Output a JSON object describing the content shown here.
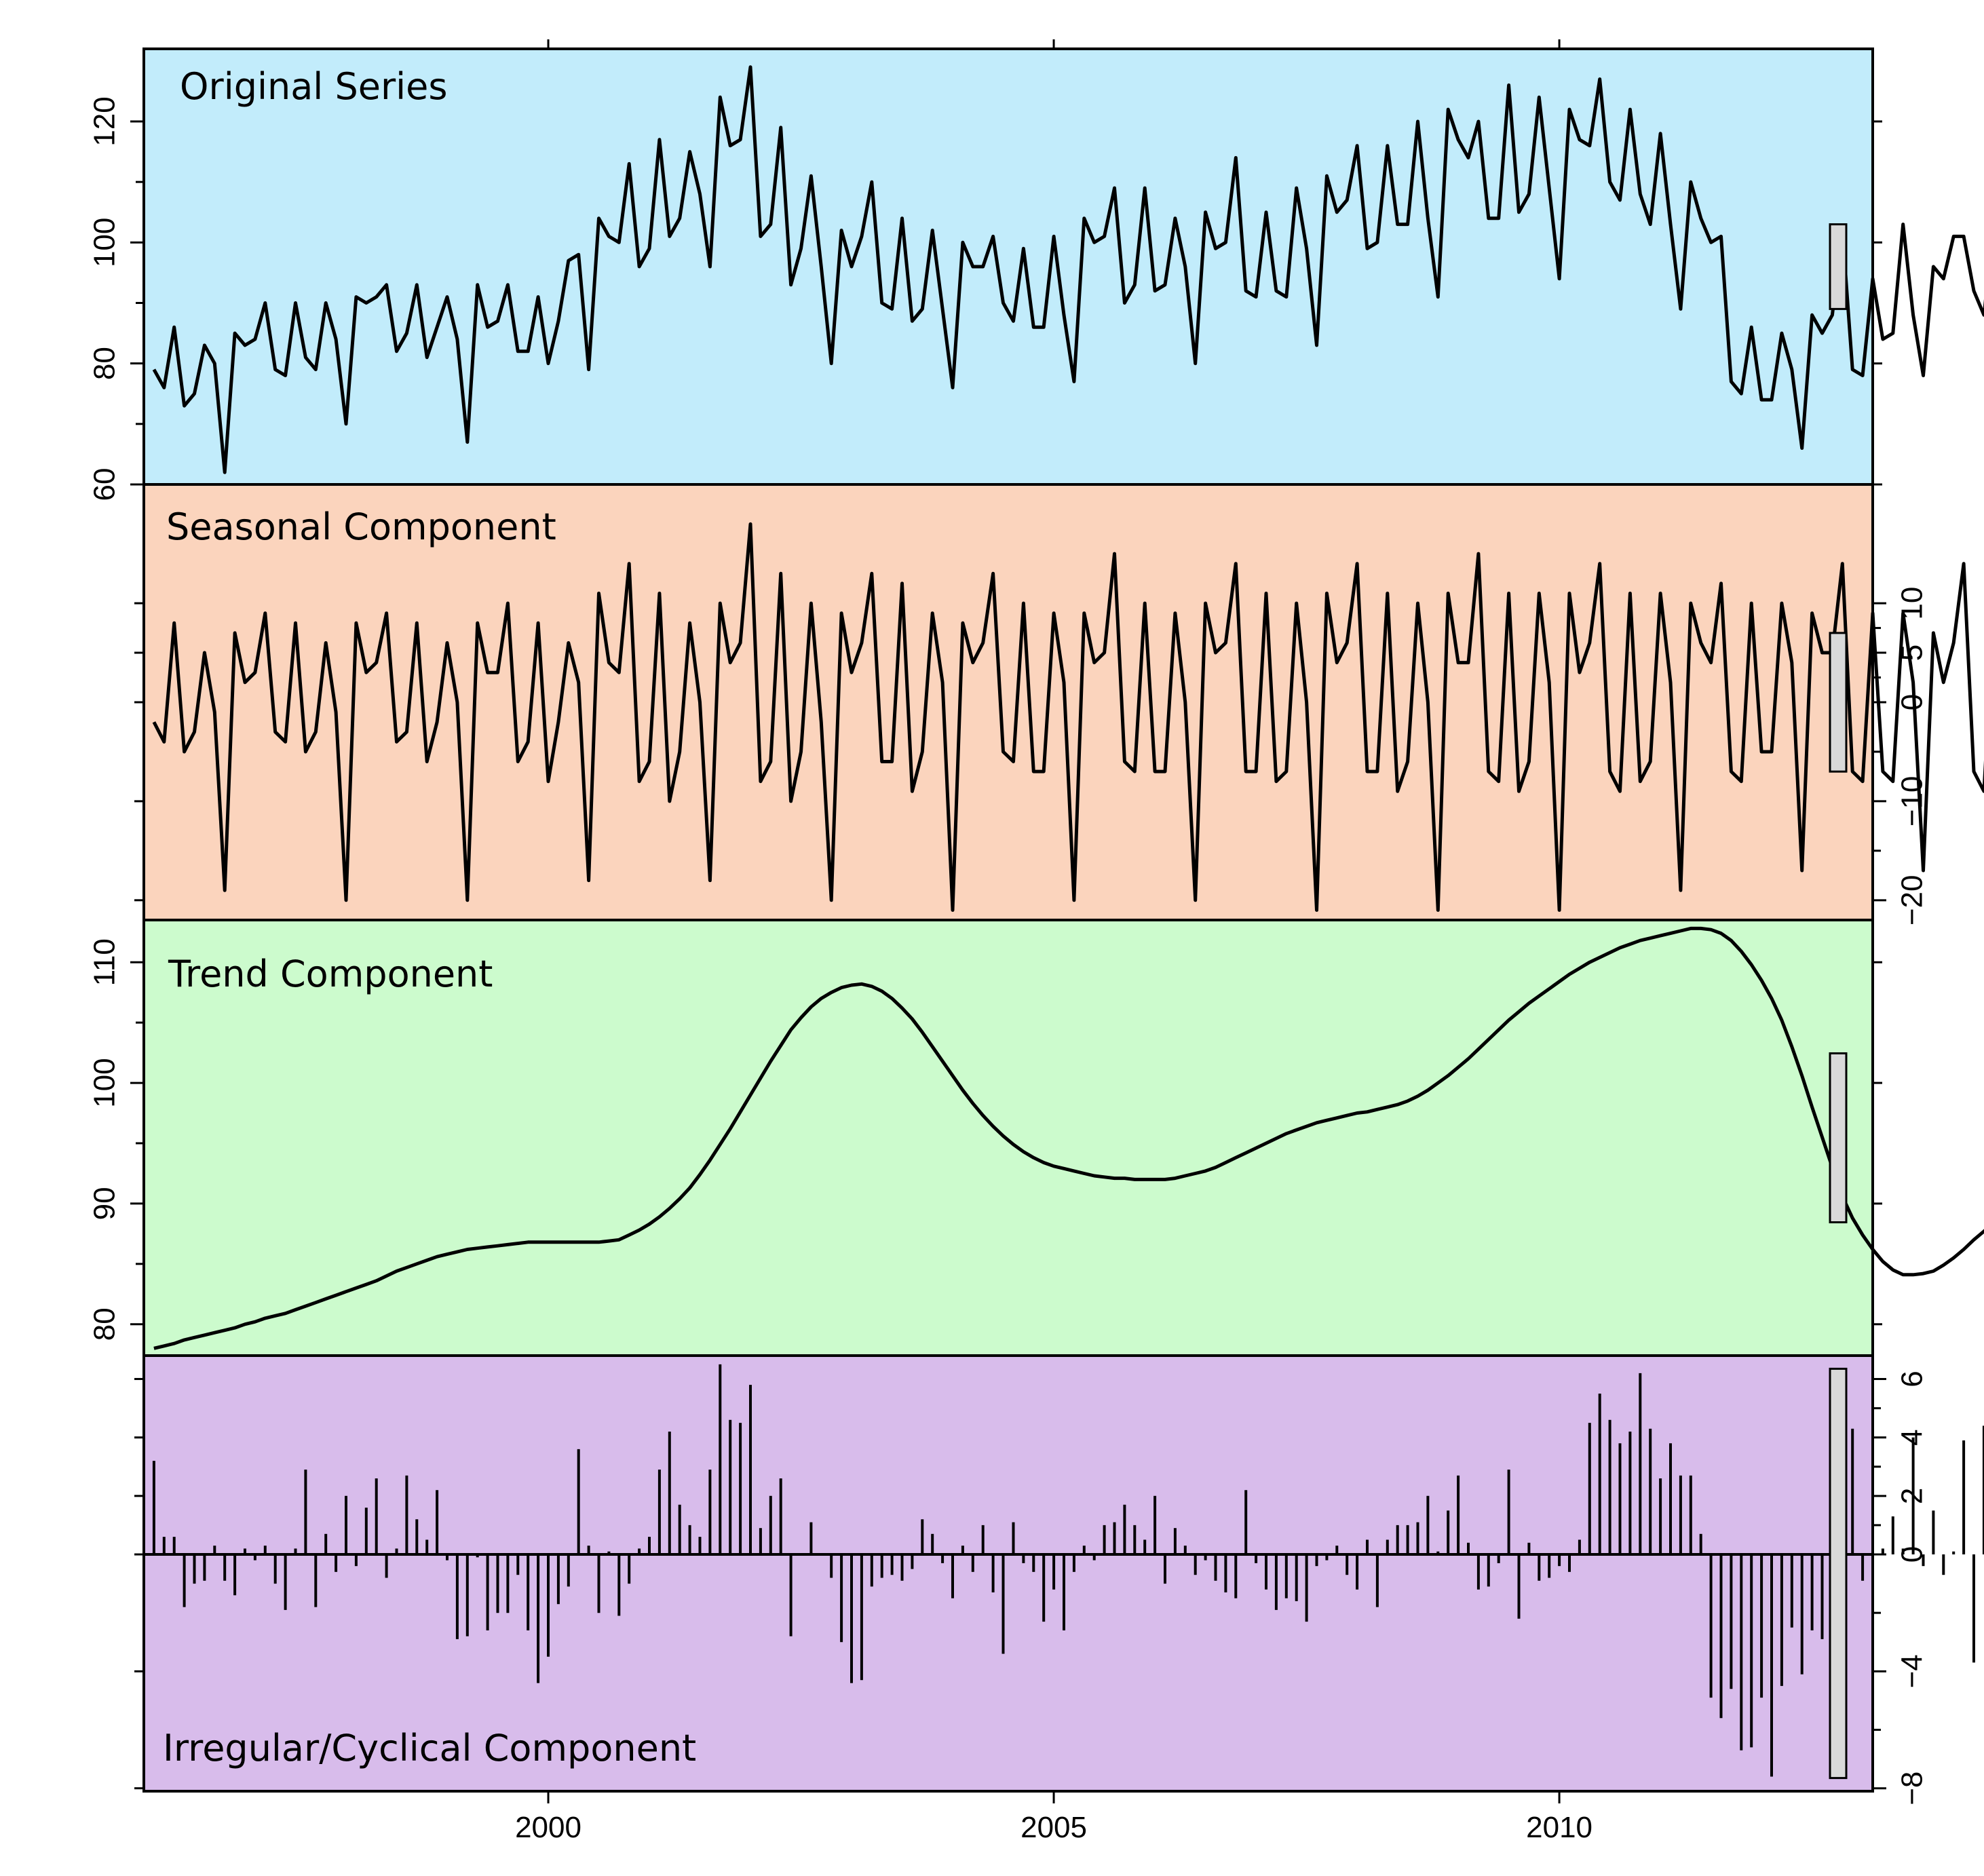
{
  "colors": {
    "original_bg": "#c2ecfb",
    "seasonal_bg": "#fbd4bd",
    "trend_bg": "#ccfbcd",
    "irregular_bg": "#d8bceb",
    "line": "#000000",
    "scale_bar": "#d9d9d9"
  },
  "chart_data": [
    {
      "type": "line",
      "title": "Original Series",
      "axis_side": "left",
      "ylim": [
        60,
        132
      ],
      "yticks": [
        60,
        80,
        100,
        120
      ],
      "x_range": [
        1996.0,
        2013.1
      ],
      "x_start": 1996.1,
      "x_step": 0.1,
      "grid": false,
      "values": [
        79,
        76,
        86,
        73,
        75,
        83,
        80,
        62,
        85,
        83,
        84,
        90,
        79,
        78,
        90,
        81,
        79,
        90,
        84,
        70,
        91,
        90,
        91,
        93,
        82,
        85,
        93,
        81,
        86,
        91,
        84,
        67,
        93,
        86,
        87,
        93,
        82,
        82,
        91,
        80,
        87,
        97,
        98,
        79,
        104,
        101,
        100,
        113,
        96,
        99,
        117,
        101,
        104,
        115,
        108,
        96,
        124,
        116,
        117,
        129,
        101,
        103,
        119,
        93,
        99,
        111,
        96,
        80,
        102,
        96,
        101,
        110,
        90,
        89,
        104,
        87,
        89,
        102,
        89,
        76,
        100,
        96,
        96,
        101,
        90,
        87,
        99,
        86,
        86,
        101,
        88,
        77,
        104,
        100,
        101,
        109,
        90,
        93,
        109,
        92,
        93,
        104,
        96,
        80,
        105,
        99,
        100,
        114,
        92,
        91,
        105,
        92,
        91,
        109,
        99,
        83,
        111,
        105,
        107,
        116,
        99,
        100,
        116,
        103,
        103,
        120,
        104,
        91,
        122,
        117,
        114,
        120,
        104,
        104,
        126,
        105,
        108,
        124,
        109,
        94,
        122,
        117,
        116,
        127,
        110,
        107,
        122,
        108,
        103,
        118,
        103,
        89,
        110,
        104,
        100,
        101,
        77,
        75,
        86,
        74,
        74,
        85,
        79,
        66,
        88,
        85,
        88,
        102,
        79,
        78,
        94,
        84,
        85,
        103,
        88,
        78,
        96,
        94,
        101,
        101,
        92,
        88,
        103,
        89,
        92,
        102,
        93,
        76,
        94,
        92,
        92
      ]
    },
    {
      "type": "line",
      "title": "Seasonal Component",
      "axis_side": "right",
      "ylim": [
        -22,
        22
      ],
      "yticks": [
        -20,
        -10,
        0,
        5,
        10
      ],
      "x_range": [
        1996.0,
        2013.1
      ],
      "x_start": 1996.1,
      "x_step": 0.1,
      "grid": false,
      "values": [
        -2,
        -4,
        8,
        -5,
        -3,
        5,
        -1,
        -19,
        7,
        2,
        3,
        9,
        -3,
        -4,
        8,
        -5,
        -3,
        6,
        -1,
        -20,
        8,
        3,
        4,
        9,
        -4,
        -3,
        8,
        -6,
        -2,
        6,
        0,
        -20,
        8,
        3,
        3,
        10,
        -6,
        -4,
        8,
        -8,
        -2,
        6,
        2,
        -18,
        11,
        4,
        3,
        14,
        -8,
        -6,
        11,
        -10,
        -5,
        8,
        0,
        -18,
        10,
        4,
        6,
        18,
        -8,
        -6,
        13,
        -10,
        -5,
        10,
        -2,
        -20,
        9,
        3,
        6,
        13,
        -6,
        -6,
        12,
        -9,
        -5,
        9,
        2,
        -21,
        8,
        4,
        6,
        13,
        -5,
        -6,
        10,
        -7,
        -7,
        9,
        2,
        -20,
        9,
        4,
        5,
        15,
        -6,
        -7,
        10,
        -7,
        -7,
        9,
        0,
        -20,
        10,
        5,
        6,
        14,
        -7,
        -7,
        11,
        -8,
        -7,
        10,
        0,
        -21,
        11,
        4,
        6,
        14,
        -7,
        -7,
        11,
        -9,
        -6,
        10,
        0,
        -21,
        11,
        4,
        4,
        15,
        -7,
        -8,
        11,
        -9,
        -6,
        11,
        2,
        -21,
        11,
        3,
        6,
        14,
        -7,
        -9,
        11,
        -8,
        -6,
        11,
        2,
        -19,
        10,
        6,
        4,
        12,
        -7,
        -8,
        10,
        -5,
        -5,
        10,
        4,
        -17,
        9,
        5,
        5,
        14,
        -7,
        -8,
        9,
        -7,
        -8,
        9,
        2,
        -17,
        7,
        2,
        6,
        14,
        -7,
        -9,
        9,
        -6,
        -7,
        9,
        2,
        -17,
        8,
        3,
        5,
        14,
        -6,
        -8,
        10,
        -7,
        -6,
        10,
        1,
        -18,
        9,
        3,
        5
      ]
    },
    {
      "type": "line",
      "title": "Trend Component",
      "axis_side": "left",
      "ylim": [
        77.4,
        113.5
      ],
      "yticks": [
        80,
        90,
        100,
        110
      ],
      "x_range": [
        1996.0,
        2013.1
      ],
      "x_start": 1996.1,
      "x_step": 0.1,
      "grid": false,
      "values": [
        78.0,
        78.2,
        78.4,
        78.7,
        78.9,
        79.1,
        79.3,
        79.5,
        79.7,
        80.0,
        80.2,
        80.5,
        80.7,
        80.9,
        81.2,
        81.5,
        81.8,
        82.1,
        82.4,
        82.7,
        83.0,
        83.3,
        83.6,
        84.0,
        84.4,
        84.7,
        85.0,
        85.3,
        85.6,
        85.8,
        86.0,
        86.2,
        86.3,
        86.4,
        86.5,
        86.6,
        86.7,
        86.8,
        86.8,
        86.8,
        86.8,
        86.8,
        86.8,
        86.8,
        86.8,
        86.9,
        87.0,
        87.4,
        87.8,
        88.3,
        88.9,
        89.6,
        90.4,
        91.3,
        92.4,
        93.6,
        94.9,
        96.2,
        97.6,
        99.0,
        100.4,
        101.8,
        103.1,
        104.4,
        105.4,
        106.3,
        107.0,
        107.5,
        107.9,
        108.1,
        108.2,
        108.0,
        107.6,
        107.0,
        106.2,
        105.3,
        104.2,
        103.0,
        101.8,
        100.6,
        99.4,
        98.3,
        97.3,
        96.4,
        95.6,
        94.9,
        94.3,
        93.8,
        93.4,
        93.1,
        92.9,
        92.7,
        92.5,
        92.3,
        92.2,
        92.1,
        92.1,
        92.0,
        92.0,
        92.0,
        92.0,
        92.1,
        92.3,
        92.5,
        92.7,
        93.0,
        93.4,
        93.8,
        94.2,
        94.6,
        95.0,
        95.4,
        95.8,
        96.1,
        96.4,
        96.7,
        96.9,
        97.1,
        97.3,
        97.5,
        97.6,
        97.8,
        98.0,
        98.2,
        98.5,
        98.9,
        99.4,
        100.0,
        100.6,
        101.3,
        102.0,
        102.8,
        103.6,
        104.4,
        105.2,
        105.9,
        106.6,
        107.2,
        107.8,
        108.4,
        109.0,
        109.5,
        110.0,
        110.4,
        110.8,
        111.2,
        111.5,
        111.8,
        112.0,
        112.2,
        112.4,
        112.6,
        112.8,
        112.8,
        112.7,
        112.4,
        111.8,
        110.9,
        109.8,
        108.5,
        107.0,
        105.2,
        103.0,
        100.6,
        98.0,
        95.5,
        93.0,
        90.6,
        88.8,
        87.4,
        86.2,
        85.2,
        84.5,
        84.1,
        84.1,
        84.2,
        84.4,
        84.9,
        85.5,
        86.2,
        87.0,
        87.7,
        88.5,
        89.3,
        90.0,
        90.7,
        91.3,
        91.8,
        92.2,
        92.3,
        92.4,
        92.4,
        92.4,
        92.4,
        92.4,
        92.4,
        92.3,
        92.3,
        92.2,
        92.1,
        92.0
      ]
    },
    {
      "type": "bar",
      "title": "Irregular/Cyclical Component",
      "axis_side": "right",
      "ylim": [
        -8.1,
        6.8
      ],
      "yticks": [
        -8,
        -4,
        0,
        2,
        4,
        6
      ],
      "x_range": [
        1996.0,
        2013.1
      ],
      "x_start": 1996.1,
      "x_step": 0.1,
      "grid": false,
      "values": [
        3.2,
        0.6,
        0.6,
        -1.8,
        -1.0,
        -0.9,
        0.3,
        -0.9,
        -1.4,
        0.2,
        -0.2,
        0.3,
        -1.0,
        -1.9,
        0.2,
        2.9,
        -1.8,
        0.7,
        -0.6,
        2.0,
        -0.4,
        1.6,
        2.6,
        -0.8,
        0.2,
        2.7,
        1.2,
        0.5,
        2.2,
        -0.2,
        -2.9,
        -2.8,
        -0.1,
        -2.6,
        -2.0,
        -2.0,
        -0.7,
        -2.6,
        -4.4,
        -3.5,
        -1.7,
        -1.1,
        3.6,
        0.3,
        -2.0,
        0.1,
        -2.1,
        -1.0,
        0.2,
        0.6,
        2.9,
        4.2,
        1.7,
        1.0,
        0.6,
        2.9,
        6.5,
        4.6,
        4.5,
        5.8,
        0.9,
        2.0,
        2.6,
        -2.8,
        0.0,
        1.1,
        0.0,
        -0.8,
        -3.0,
        -4.4,
        -4.3,
        -1.1,
        -0.8,
        -0.7,
        -0.9,
        -0.5,
        1.2,
        0.7,
        -0.3,
        -1.5,
        0.3,
        -0.6,
        1.0,
        -1.3,
        -3.4,
        1.1,
        -0.3,
        -0.6,
        -2.3,
        -1.2,
        -2.6,
        -0.6,
        0.3,
        -0.2,
        1.0,
        1.1,
        1.7,
        1.0,
        0.5,
        2.0,
        -1.0,
        0.9,
        0.3,
        -0.7,
        -0.2,
        -0.9,
        -1.3,
        -1.5,
        2.2,
        -0.3,
        -1.2,
        -1.9,
        -1.5,
        -1.6,
        -2.3,
        -0.4,
        -0.2,
        0.3,
        -0.7,
        -1.2,
        0.5,
        -1.8,
        0.5,
        1.0,
        1.0,
        1.1,
        2.0,
        0.1,
        1.5,
        2.7,
        0.4,
        -1.2,
        -1.1,
        -0.3,
        2.9,
        -2.2,
        0.4,
        -0.9,
        -0.8,
        -0.4,
        -0.6,
        0.5,
        4.5,
        5.5,
        4.6,
        3.8,
        4.2,
        6.2,
        4.3,
        2.6,
        3.8,
        2.7,
        2.7,
        0.7,
        -4.9,
        -5.6,
        -4.6,
        -6.7,
        -6.6,
        -4.9,
        -7.6,
        -4.5,
        -2.5,
        -4.1,
        -2.6,
        -2.9,
        -2.8,
        0.0,
        4.3,
        -0.9,
        -0.3,
        0.2,
        1.3,
        0.2,
        4.0,
        -0.4,
        1.5,
        -0.7,
        0.1,
        3.9,
        -3.7,
        4.4,
        3.4,
        4.2,
        1.3,
        3.8,
        0.2,
        -0.2,
        -0.9,
        -2.3,
        -2.0,
        -4.6
      ]
    }
  ],
  "x_axis": {
    "ticks": [
      2000,
      2005,
      2010
    ]
  }
}
